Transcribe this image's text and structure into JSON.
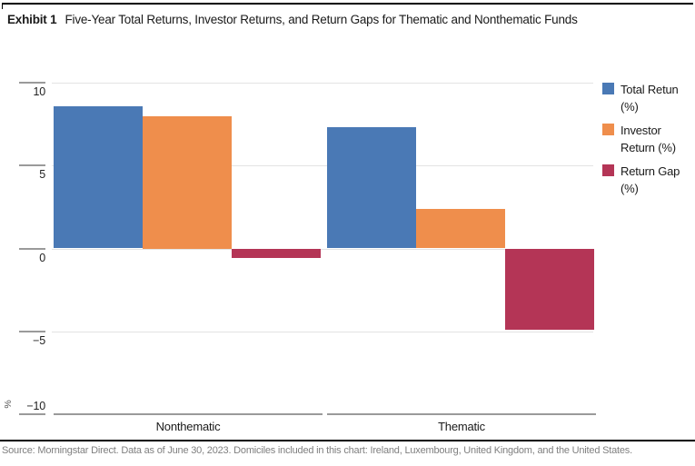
{
  "header": {
    "exhibit_label": "Exhibit 1",
    "title": "Five-Year Total Returns, Investor Returns, and Return Gaps for Thematic and Nonthematic Funds"
  },
  "legend": {
    "items": [
      {
        "label": "Total Retun (%)",
        "color": "#4a79b5"
      },
      {
        "label": "Investor Return (%)",
        "color": "#ef8e4c"
      },
      {
        "label": "Return Gap (%)",
        "color": "#b43556"
      }
    ]
  },
  "chart_data": {
    "type": "bar",
    "categories": [
      "Nonthematic",
      "Thematic"
    ],
    "series": [
      {
        "name": "Total Retun (%)",
        "color": "#4a79b5",
        "values": [
          8.6,
          7.3
        ]
      },
      {
        "name": "Investor Return (%)",
        "color": "#ef8e4c",
        "values": [
          8.0,
          2.4
        ]
      },
      {
        "name": "Return Gap (%)",
        "color": "#b43556",
        "values": [
          -0.6,
          -4.9
        ]
      }
    ],
    "title": "Five-Year Total Returns, Investor Returns, and Return Gaps for Thematic and Nonthematic Funds",
    "xlabel": "",
    "ylabel": "%",
    "ylim": [
      -10,
      10
    ],
    "yticks": [
      10,
      5,
      0,
      -5,
      -10
    ],
    "grid": true,
    "legend_position": "right"
  },
  "axis": {
    "y_unit_label": "%",
    "tick_labels": [
      "10",
      "5",
      "0",
      "−5",
      "−10"
    ]
  },
  "footer": {
    "source": "Source: Morningstar Direct. Data as of June 30, 2023. Domiciles included in this chart: Ireland, Luxembourg, United Kingdom, and the United States."
  }
}
